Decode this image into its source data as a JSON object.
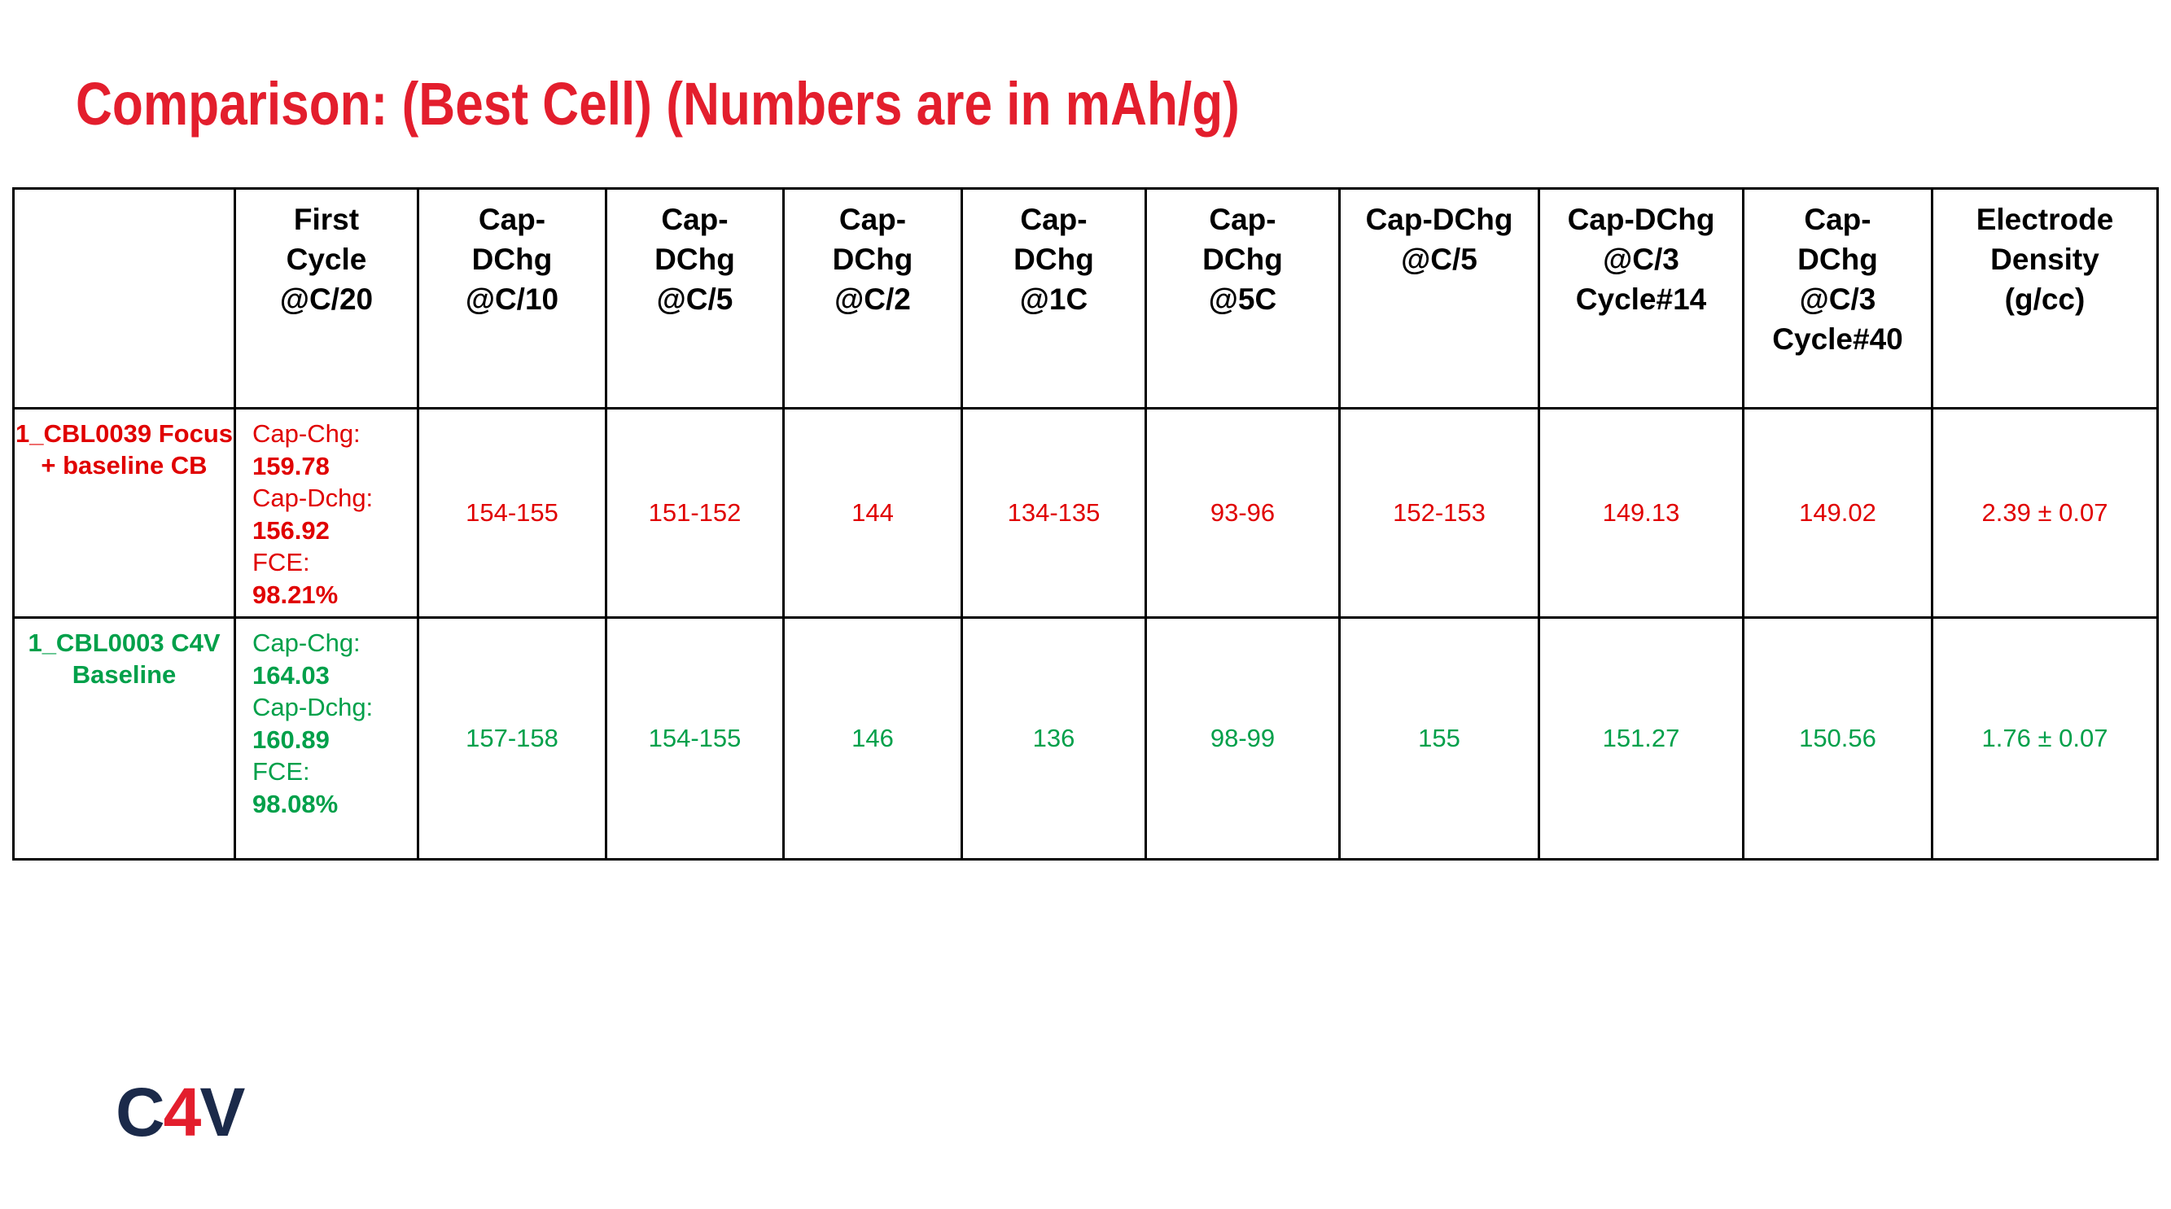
{
  "title": "Comparison: (Best Cell) (Numbers are in mAh/g)",
  "table": {
    "header": [
      "First Cycle @C/20",
      "Cap-DChg @C/10",
      "Cap-DChg @C/5",
      "Cap-DChg @C/2",
      "Cap-DChg @1C",
      "Cap-DChg @5C",
      "Cap-DChg @C/5",
      "Cap-DChg @C/3 Cycle#14",
      "Cap-DChg @C/3 Cycle#40",
      "Electrode Density (g/cc)"
    ],
    "rows": [
      {
        "label": "1_CBL0039 Focus + baseline CB",
        "color": "#e00000",
        "first_cycle": [
          "Cap-Chg:",
          "159.78",
          "Cap-Dchg:",
          "156.92",
          "FCE:",
          "98.21%"
        ],
        "cells": [
          "154-155",
          "151-152",
          "144",
          "134-135",
          "93-96",
          "152-153",
          "149.13",
          "149.02",
          "2.39 ± 0.07"
        ]
      },
      {
        "label": "1_CBL0003 C4V Baseline",
        "color": "#00a04a",
        "first_cycle": [
          "Cap-Chg:",
          "164.03",
          "Cap-Dchg:",
          "160.89",
          "FCE:",
          "98.08%"
        ],
        "cells": [
          "157-158",
          "154-155",
          "146",
          "136",
          "98-99",
          "155",
          "151.27",
          "150.56",
          "1.76 ± 0.07"
        ]
      }
    ]
  },
  "logo": [
    "C",
    "4",
    "V"
  ]
}
